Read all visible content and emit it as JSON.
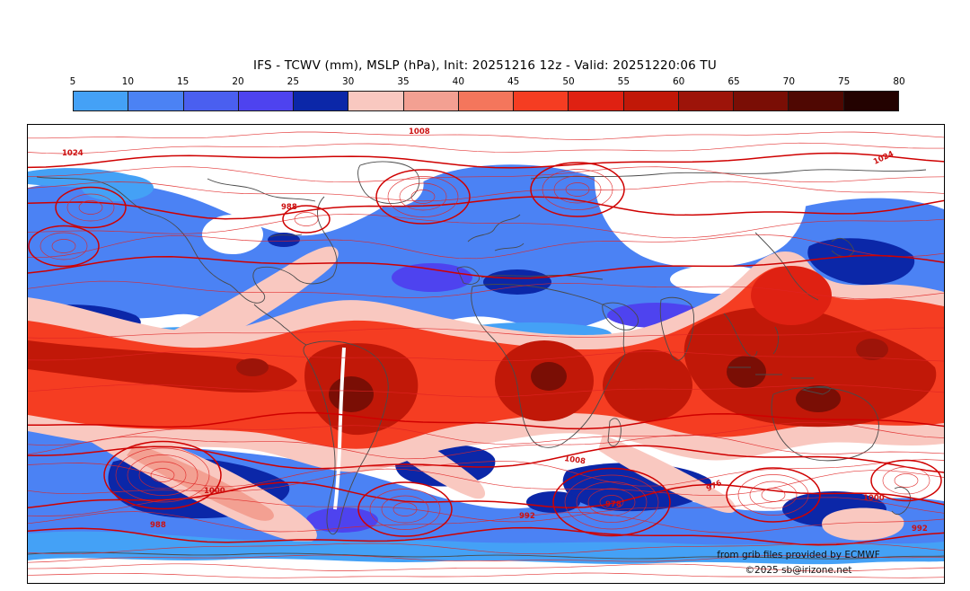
{
  "title": "IFS - TCWV (mm), MSLP (hPa), Init: 20251216 12z - Valid: 20251220:06 TU",
  "colorbar": {
    "ticks": [
      "5",
      "10",
      "15",
      "20",
      "25",
      "30",
      "35",
      "40",
      "45",
      "50",
      "55",
      "60",
      "65",
      "70",
      "75",
      "80"
    ],
    "colors": [
      "#44a1f6",
      "#4b82f4",
      "#4a5ff0",
      "#4e43ef",
      "#0b27a8",
      "#f9c8c0",
      "#f3a092",
      "#f4765c",
      "#f53d22",
      "#df2112",
      "#c11808",
      "#9d1409",
      "#7a0e05",
      "#4f0802",
      "#230200"
    ],
    "units": "mm"
  },
  "map": {
    "credit_line1": "from grib files provided by ECMWF",
    "credit_line2": "©2025 sb@irizone.net",
    "isobar_labels": {
      "l1": "1024",
      "l2": "1008",
      "l3": "1024",
      "l4": "988",
      "l5": "1000",
      "l6": "988",
      "l7": "1008",
      "l8": "978",
      "l9": "992",
      "l10": "976",
      "l11": "1000",
      "l12": "992"
    }
  },
  "chart_data": {
    "type": "heatmap",
    "title": "IFS - TCWV (mm), MSLP (hPa), Init: 20251216 12z - Valid: 20251220:06 TU",
    "model": "IFS",
    "shaded_field": "TCWV",
    "shaded_units": "mm",
    "contour_field": "MSLP",
    "contour_units": "hPa",
    "init_time": "20251216 12z",
    "valid_time": "20251220:06 TU",
    "colorbar_ticks": [
      5,
      10,
      15,
      20,
      25,
      30,
      35,
      40,
      45,
      50,
      55,
      60,
      65,
      70,
      75,
      80
    ],
    "colorbar_colors": [
      "#44a1f6",
      "#4b82f4",
      "#4a5ff0",
      "#4e43ef",
      "#0b27a8",
      "#f9c8c0",
      "#f3a092",
      "#f4765c",
      "#f53d22",
      "#df2112",
      "#c11808",
      "#9d1409",
      "#7a0e05",
      "#4f0802",
      "#230200"
    ],
    "contour_color": "red",
    "visible_isobar_labels": [
      1024,
      1008,
      1000,
      992,
      988,
      978,
      976
    ],
    "projection": "global equirectangular world map",
    "legend_position": "top horizontal colorbar",
    "pattern_summary": "dry white polar zones; blue mid-latitude storm tracks; dark-blue subtropical dry highs; red/dark-red tropical moisture band (ITCZ, Amazon, Congo, maritime continent warm pool)",
    "credits": [
      "from grib files provided by ECMWF",
      "©2025 sb@irizone.net"
    ]
  }
}
